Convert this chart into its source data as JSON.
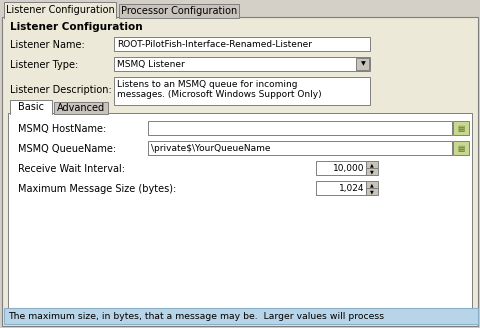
{
  "tab1": "Listener Configuration",
  "tab2": "Processor Configuration",
  "section_title": "Listener Configuration",
  "fields": [
    {
      "label": "Listener Name:",
      "value": "ROOT-PilotFish-Interface-Renamed-Listener",
      "type": "text"
    },
    {
      "label": "Listener Type:",
      "value": "MSMQ Listener",
      "type": "dropdown"
    },
    {
      "label": "Listener Description:",
      "value": "Listens to an MSMQ queue for incoming\nmessages. (Microsoft Windows Support Only)",
      "type": "textarea"
    }
  ],
  "inner_tab1": "Basic",
  "inner_tab2": "Advanced",
  "inner_fields": [
    {
      "label": "MSMQ HostName:",
      "value": "",
      "type": "text_icon"
    },
    {
      "label": "MSMQ QueueName:",
      "value": "\\private$\\YourQueueName",
      "type": "text_icon"
    },
    {
      "label": "Receive Wait Interval:",
      "value": "10,000",
      "type": "spinner"
    },
    {
      "label": "Maximum Message Size (bytes):",
      "value": "1,024",
      "type": "spinner"
    }
  ],
  "tooltip": "The maximum size, in bytes, that a message may be.  Larger values will process",
  "outer_bg": "#d4d0c8",
  "panel_bg": "#ece9d8",
  "white": "#ffffff",
  "tab_inactive_bg": "#c8c4bc",
  "border_dark": "#7f7f7f",
  "border_light": "#ffffff",
  "text_color": "#000000",
  "tooltip_bg": "#b8d4e8",
  "icon_bg": "#c8d890",
  "font_size": 7.0
}
